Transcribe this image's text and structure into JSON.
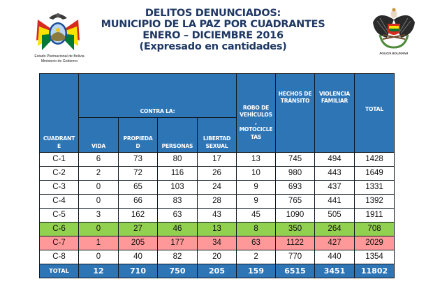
{
  "header": {
    "title_lines": [
      "DELITOS DENUNCIADOS:",
      "MUNICIPIO DE LA PAZ POR CUADRANTES",
      "ENERO – DICIEMBRE 2016",
      "(Expresado en cantidades)"
    ],
    "left_logo": {
      "icon": "bolivia-coat-of-arms-icon",
      "caption_line1": "Estado Plurinacional de Bolivia",
      "caption_line2": "Ministerio de Gobierno"
    },
    "right_logo": {
      "icon": "policia-boliviana-eagle-emblem-icon",
      "caption": "POLICÍA BOLIVIANA"
    }
  },
  "table": {
    "headers": {
      "cuadrante": "CUADRANTE",
      "contra_la": "CONTRA LA:",
      "vida": "VIDA",
      "propiedad": "PROPIEDAD",
      "personas": "PERSONAS",
      "libertad_sexual": "LIBERTAD SEXUAL",
      "robo_vehiculos": "ROBO DE VEHÍCULOS , MOTOCICLETAS",
      "hechos_transito": "HECHOS DE TRÁNSITO",
      "violencia_familiar": "VIOLENCIA FAMILIAR",
      "total": "TOTAL"
    },
    "header_display": {
      "cuadrante": [
        "CUADRANT",
        "E"
      ],
      "propiedad": [
        "PROPIEDA",
        "D"
      ],
      "libertad_sexual": [
        "LIBERTAD",
        "SEXUAL"
      ],
      "robo_vehiculos": [
        "ROBO DE",
        "VEHÍCULOS",
        ",",
        "MOTOCICLE",
        "TAS"
      ],
      "hechos_transito": [
        "HECHOS DE",
        "TRÁNSITO"
      ],
      "violencia_familiar": [
        "VIOLENCIA",
        "FAMILIAR"
      ]
    },
    "rows": [
      {
        "cuadrante": "C-1",
        "vida": "6",
        "propiedad": "73",
        "personas": "80",
        "libertad_sexual": "17",
        "robo_vehiculos": "13",
        "hechos_transito": "745",
        "violencia_familiar": "494",
        "total": "1428",
        "highlight": "none"
      },
      {
        "cuadrante": "C-2",
        "vida": "2",
        "propiedad": "72",
        "personas": "116",
        "libertad_sexual": "26",
        "robo_vehiculos": "10",
        "hechos_transito": "980",
        "violencia_familiar": "443",
        "total": "1649",
        "highlight": "none"
      },
      {
        "cuadrante": "C-3",
        "vida": "0",
        "propiedad": "65",
        "personas": "103",
        "libertad_sexual": "24",
        "robo_vehiculos": "9",
        "hechos_transito": "693",
        "violencia_familiar": "437",
        "total": "1331",
        "highlight": "none"
      },
      {
        "cuadrante": "C-4",
        "vida": "0",
        "propiedad": "66",
        "personas": "83",
        "libertad_sexual": "28",
        "robo_vehiculos": "9",
        "hechos_transito": "765",
        "violencia_familiar": "441",
        "total": "1392",
        "highlight": "none"
      },
      {
        "cuadrante": "C-5",
        "vida": "3",
        "propiedad": "162",
        "personas": "63",
        "libertad_sexual": "43",
        "robo_vehiculos": "45",
        "hechos_transito": "1090",
        "violencia_familiar": "505",
        "total": "1911",
        "highlight": "none"
      },
      {
        "cuadrante": "C-6",
        "vida": "0",
        "propiedad": "27",
        "personas": "46",
        "libertad_sexual": "13",
        "robo_vehiculos": "8",
        "hechos_transito": "350",
        "violencia_familiar": "264",
        "total": "708",
        "highlight": "lowest"
      },
      {
        "cuadrante": "C-7",
        "vida": "1",
        "propiedad": "205",
        "personas": "177",
        "libertad_sexual": "34",
        "robo_vehiculos": "63",
        "hechos_transito": "1122",
        "violencia_familiar": "427",
        "total": "2029",
        "highlight": "highest"
      },
      {
        "cuadrante": "C-8",
        "vida": "0",
        "propiedad": "40",
        "personas": "82",
        "libertad_sexual": "20",
        "robo_vehiculos": "2",
        "hechos_transito": "770",
        "violencia_familiar": "440",
        "total": "1354",
        "highlight": "none"
      }
    ],
    "totals": {
      "label": "TOTAL",
      "vida": "12",
      "propiedad": "710",
      "personas": "750",
      "libertad_sexual": "205",
      "robo_vehiculos": "159",
      "hechos_transito": "6515",
      "violencia_familiar": "3451",
      "total": "11802"
    }
  },
  "colors": {
    "title_text": "#1F3864",
    "header_bg": "#2E75B6",
    "header_text": "#FFFFFF",
    "lowest_row_bg": "#92D050",
    "highest_row_bg": "#FF9999",
    "border": "#101820"
  }
}
